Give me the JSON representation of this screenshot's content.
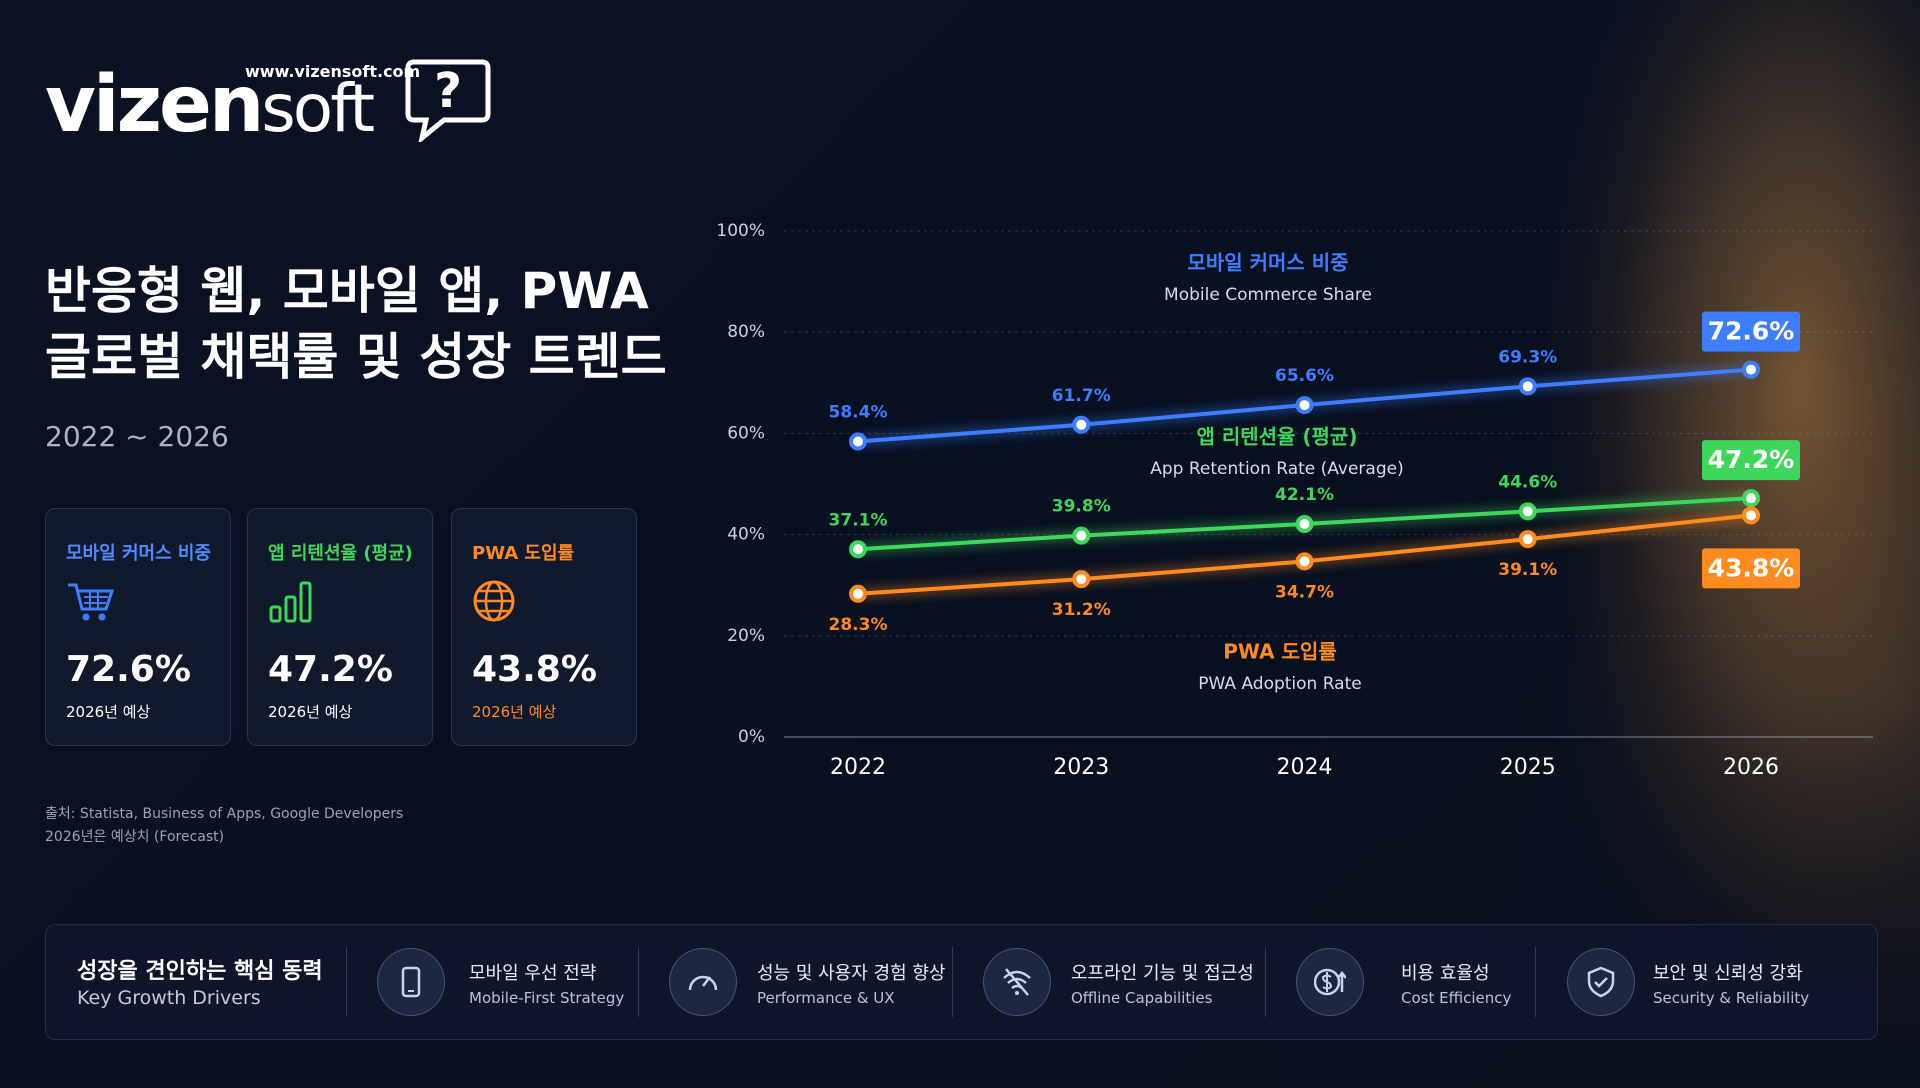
{
  "header": {
    "logo_main": "vizen",
    "logo_sub": "soft",
    "logo_icon": "?",
    "url": "www.vizensoft.com",
    "title_lines": [
      "반응형 웹, 모바일 앱, PWA",
      "글로벌 채택률 및 성장 트렌드"
    ],
    "period": "2022 ~ 2026"
  },
  "cards": [
    {
      "label": "모바일 커머스 비중",
      "value": "72.6%",
      "note": "2026년 예상"
    },
    {
      "label": "앱 리텐션율 (평균)",
      "value": "47.2%",
      "note": "2026년 예상"
    },
    {
      "label": "PWA 도입률",
      "value": "43.8%",
      "note": "2026년 예상"
    }
  ],
  "sources": [
    "출처: Statista, Business of Apps, Google Developers",
    "2026년은 예상치 (Forecast)"
  ],
  "chart_data": {
    "type": "line",
    "categories": [
      "2022",
      "2023",
      "2024",
      "2025",
      "2026"
    ],
    "ylim": [
      0,
      100
    ],
    "yticks": [
      {
        "value": 0,
        "label": "0%"
      },
      {
        "value": 20,
        "label": "20%"
      },
      {
        "value": 40,
        "label": "40%"
      },
      {
        "value": 60,
        "label": "60%"
      },
      {
        "value": 80,
        "label": "80%"
      },
      {
        "value": 100,
        "label": "100%"
      }
    ],
    "grid": true,
    "series": [
      {
        "name": "모바일 커머스 비중",
        "name_en": "Mobile Commerce Share",
        "color": "#3f7dff",
        "values": [
          58.4,
          61.7,
          65.6,
          69.3,
          72.6
        ],
        "value_labels": [
          "58.4%",
          "61.7%",
          "65.6%",
          "69.3%",
          "72.6%"
        ]
      },
      {
        "name": "앱 리텐션율 (평균)",
        "name_en": "App Retention Rate (Average)",
        "color": "#3fd65c",
        "values": [
          37.1,
          39.8,
          42.1,
          44.6,
          47.2
        ],
        "value_labels": [
          "37.1%",
          "39.8%",
          "42.1%",
          "44.6%",
          "47.2%"
        ]
      },
      {
        "name": "PWA 도입률",
        "name_en": "PWA Adoption Rate",
        "color": "#ff8a1e",
        "values": [
          28.3,
          31.2,
          34.7,
          39.1,
          43.8
        ],
        "value_labels": [
          "28.3%",
          "31.2%",
          "34.7%",
          "39.1%",
          "43.8%"
        ]
      }
    ]
  },
  "drivers": {
    "title": "성장을 견인하는 핵심 동력",
    "subtitle": "Key Growth Drivers",
    "items": [
      {
        "label": "모바일 우선 전략",
        "sub": "Mobile-First Strategy"
      },
      {
        "label": "성능 및 사용자 경험 향상",
        "sub": "Performance & UX"
      },
      {
        "label": "오프라인 기능 및 접근성",
        "sub": "Offline Capabilities"
      },
      {
        "label": "비용 효율성",
        "sub": "Cost Efficiency"
      },
      {
        "label": "보안 및 신뢰성 강화",
        "sub": "Security & Reliability"
      }
    ]
  }
}
